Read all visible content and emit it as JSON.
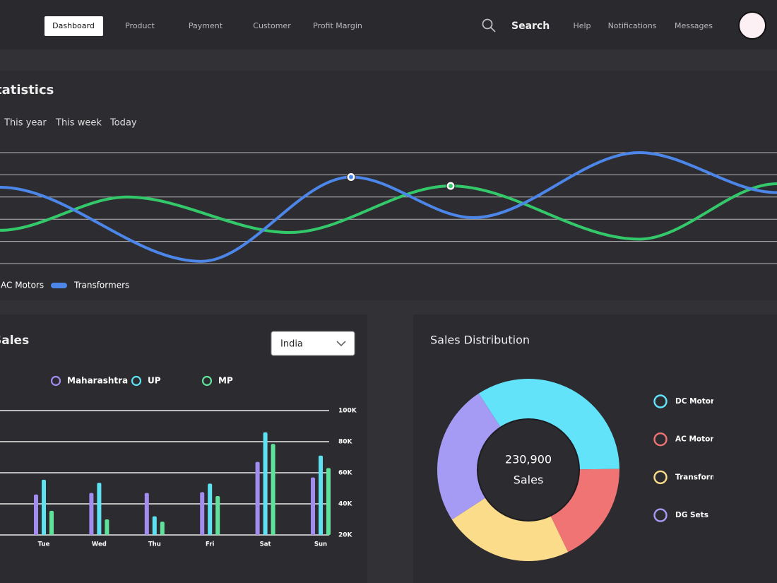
{
  "nav": {
    "items": [
      "Dashboard",
      "Product",
      "Payment",
      "Customer",
      "Profit Margin"
    ],
    "active": 0,
    "search": "Search",
    "links": [
      "Help",
      "Notifications",
      "Messages"
    ]
  },
  "statistics_tabs": [
    "This year",
    "This week",
    "Today"
  ],
  "sales_filter": "India",
  "chart_data": [
    {
      "type": "line",
      "title": "Statistics",
      "xlim": [
        0,
        11
      ],
      "ylim": [
        0,
        5
      ],
      "yticks": [
        0,
        1,
        2,
        3,
        4,
        5
      ],
      "grid": true,
      "show_tick_labels": false,
      "smooth": true,
      "series": [
        {
          "name": "AC Motors",
          "color": "#33c96b",
          "x": [
            0,
            1.8,
            4.1,
            6.38,
            9.05,
            11
          ],
          "values": [
            1.5,
            3.0,
            1.4,
            3.5,
            1.1,
            3.6
          ],
          "highlight": 3
        },
        {
          "name": "Transformers",
          "color": "#4b86e8",
          "x": [
            0,
            2.85,
            4.97,
            6.7,
            9.05,
            11
          ],
          "values": [
            3.44,
            0.1,
            3.9,
            2.07,
            5.0,
            3.2
          ],
          "highlight": 2
        }
      ]
    },
    {
      "type": "bar",
      "title": "Sales",
      "categories": [
        "Tue",
        "Wed",
        "Thu",
        "Fri",
        "Sat",
        "Sun"
      ],
      "ylim": [
        20000,
        100000
      ],
      "yticks": [
        {
          "value": 20000,
          "label": "20K"
        },
        {
          "value": 40000,
          "label": "40K"
        },
        {
          "value": 60000,
          "label": "60K"
        },
        {
          "value": 80000,
          "label": "80K"
        },
        {
          "value": 100000,
          "label": "100K"
        }
      ],
      "grid": true,
      "series": [
        {
          "name": "Maharashtra",
          "color": "#a38cf0",
          "values": [
            46000,
            47000,
            47000,
            47500,
            67000,
            57000
          ]
        },
        {
          "name": "UP",
          "color": "#5ee2f2",
          "values": [
            55500,
            53500,
            32000,
            53000,
            86000,
            71000
          ]
        },
        {
          "name": "MP",
          "color": "#5fe39a",
          "values": [
            35500,
            30000,
            28500,
            45000,
            78500,
            63000
          ]
        }
      ]
    },
    {
      "type": "pie",
      "title": "Sales Distribution",
      "total": {
        "value": 230900,
        "label": "230,900"
      },
      "total_label": "Sales",
      "start_angle": -33,
      "categories": [
        "DC Motor",
        "AC Motor",
        "Transformers",
        "DG Sets"
      ],
      "values": [
        34,
        18,
        23,
        25
      ],
      "colors": [
        "#62e3fa",
        "#f07474",
        "#fbdc8a",
        "#a69bf4"
      ]
    }
  ]
}
